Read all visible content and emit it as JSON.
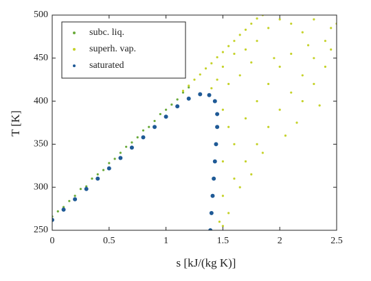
{
  "chart_data": {
    "type": "scatter",
    "x_label": "s [kJ/(kg K)]",
    "y_label": "T [K]",
    "xlim": [
      0,
      2.5
    ],
    "ylim": [
      250,
      500
    ],
    "xticks": [
      0,
      0.5,
      1,
      1.5,
      2,
      2.5
    ],
    "yticks": [
      250,
      300,
      350,
      400,
      450,
      500
    ],
    "legend": "upper left",
    "grid": false,
    "series": [
      {
        "name": "subc. liq.",
        "color": "#6aaa3a",
        "x": [
          0,
          0.05,
          0.1,
          0.15,
          0.2,
          0.25,
          0.3,
          0.35,
          0.4,
          0.45,
          0.5,
          0.55,
          0.6,
          0.65,
          0.7,
          0.75,
          0.8,
          0.85,
          0.9,
          0.95,
          1.0,
          1.05,
          1.1,
          1.15,
          1.2
        ],
        "values": [
          266,
          272,
          277,
          284,
          290,
          298,
          301,
          310,
          315,
          320,
          328,
          333,
          340,
          347,
          352,
          358,
          366,
          370,
          377,
          385,
          390,
          396,
          402,
          410,
          416
        ]
      },
      {
        "name": "superh. vap.",
        "color": "#c5d22a",
        "x": [
          1.15,
          1.2,
          1.25,
          1.3,
          1.35,
          1.4,
          1.45,
          1.5,
          1.55,
          1.6,
          1.65,
          1.7,
          1.75,
          1.8,
          1.85,
          1.5,
          1.6,
          1.55,
          1.7,
          1.8,
          1.9,
          2.0,
          2.1,
          2.2,
          2.3,
          2.4,
          1.5,
          1.55,
          1.6,
          1.7,
          1.8,
          1.9,
          2.0,
          2.1,
          2.2,
          2.3,
          2.45,
          1.5,
          1.6,
          1.7,
          1.8,
          1.9,
          2.0,
          2.1,
          2.2,
          2.3,
          2.4,
          1.5,
          1.55,
          1.65,
          1.75,
          1.85,
          2.05,
          2.15,
          2.35,
          2.45,
          1.47,
          1.5,
          1.95,
          2.25,
          1.65,
          1.75,
          1.4,
          1.45,
          2.5
        ],
        "values": [
          412,
          418,
          425,
          431,
          438,
          444,
          451,
          457,
          464,
          470,
          477,
          483,
          490,
          496,
          500,
          440,
          455,
          420,
          460,
          470,
          485,
          495,
          490,
          480,
          495,
          470,
          390,
          370,
          350,
          380,
          400,
          420,
          440,
          455,
          430,
          450,
          485,
          330,
          310,
          330,
          350,
          370,
          390,
          410,
          400,
          420,
          440,
          290,
          270,
          300,
          315,
          340,
          360,
          375,
          395,
          460,
          260,
          255,
          450,
          465,
          430,
          445,
          415,
          425,
          490
        ]
      },
      {
        "name": "saturated",
        "color": "#1f5a96",
        "x": [
          0,
          0.1,
          0.2,
          0.3,
          0.4,
          0.5,
          0.6,
          0.7,
          0.8,
          0.9,
          1.0,
          1.1,
          1.2,
          1.3,
          1.38,
          1.43,
          1.45,
          1.45,
          1.44,
          1.43,
          1.42,
          1.41,
          1.4,
          1.39
        ],
        "values": [
          262,
          274,
          286,
          298,
          310,
          322,
          334,
          346,
          358,
          370,
          382,
          394,
          403,
          408,
          407,
          400,
          385,
          370,
          350,
          330,
          310,
          290,
          270,
          250
        ]
      }
    ]
  }
}
